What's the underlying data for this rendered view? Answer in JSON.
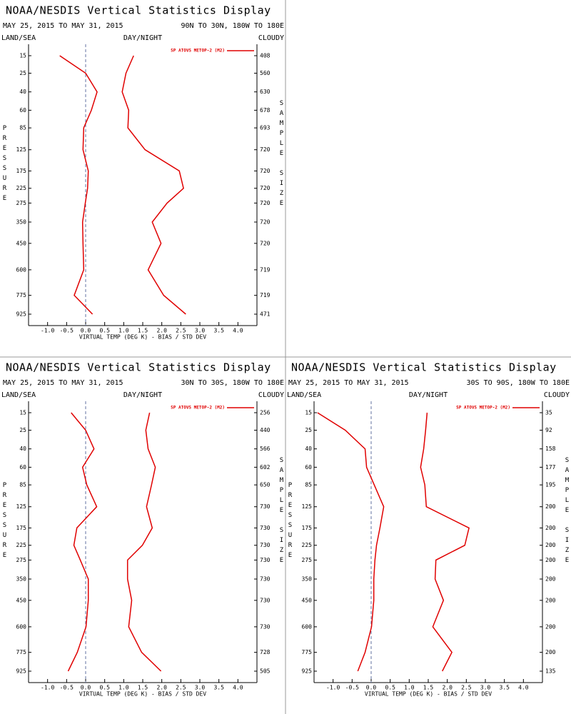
{
  "chart_data": [
    {
      "type": "line",
      "title": "NOAA/NESDIS Vertical Statistics Display",
      "date_range": "MAY 25, 2015 TO MAY 31, 2015",
      "region": "90N TO 30N, 180W TO 180E",
      "land_sea_label": "LAND/SEA",
      "day_night_label": "DAY/NIGHT",
      "cloud_label": "CLOUDY",
      "y_label": "PRESSURE",
      "y2_label": "SAMPLE SIZE",
      "x_label": "VIRTUAL TEMP (DEG K) - BIAS / STD DEV",
      "y": [
        15,
        25,
        40,
        60,
        85,
        125,
        175,
        225,
        275,
        350,
        450,
        600,
        775,
        925
      ],
      "yticks": [
        15,
        25,
        40,
        60,
        85,
        125,
        175,
        225,
        275,
        350,
        450,
        600,
        775,
        925
      ],
      "ylim": [
        15,
        925
      ],
      "sample_sizes": [
        408,
        560,
        630,
        678,
        693,
        720,
        720,
        720,
        720,
        720,
        720,
        719,
        719,
        471
      ],
      "xlim": [
        -1.5,
        4.5
      ],
      "xticks": [
        {
          "value": -1,
          "label": "-1.0"
        },
        -0.5,
        {
          "value": 0,
          "label": "0.0"
        },
        0.5,
        {
          "value": 1,
          "label": "1.0"
        },
        1.5,
        {
          "value": 2,
          "label": "2.0"
        },
        2.5,
        {
          "value": 3,
          "label": "3.0"
        },
        3.5,
        {
          "value": 4,
          "label": "4.0"
        }
      ],
      "series": [
        {
          "name": "SP ATOVS METOP-2 (M2)",
          "color": "#e00000",
          "values": [
            -0.68,
            0.0,
            0.3,
            0.15,
            -0.05,
            -0.07,
            0.07,
            0.05,
            -0.01,
            -0.08,
            -0.07,
            -0.05,
            -0.3,
            0.18
          ]
        },
        {
          "color": "#e00000",
          "values": [
            1.26,
            1.06,
            0.96,
            1.13,
            1.11,
            1.56,
            2.46,
            2.57,
            2.14,
            1.75,
            1.98,
            1.64,
            2.05,
            2.63
          ]
        }
      ]
    },
    {
      "type": "line",
      "title": "NOAA/NESDIS Vertical Statistics Display",
      "date_range": "MAY 25, 2015 TO MAY 31, 2015",
      "region": "30N TO 30S, 180W TO 180E",
      "land_sea_label": "LAND/SEA",
      "day_night_label": "DAY/NIGHT",
      "cloud_label": "CLOUDY",
      "y_label": "PRESSURE",
      "y2_label": "SAMPLE SIZE",
      "x_label": "VIRTUAL TEMP (DEG K) - BIAS / STD DEV",
      "y": [
        15,
        25,
        40,
        60,
        85,
        125,
        175,
        225,
        275,
        350,
        450,
        600,
        775,
        925
      ],
      "yticks": [
        15,
        25,
        40,
        60,
        85,
        125,
        175,
        225,
        275,
        350,
        450,
        600,
        775,
        925
      ],
      "ylim": [
        15,
        925
      ],
      "sample_sizes": [
        256,
        440,
        566,
        602,
        650,
        730,
        730,
        730,
        730,
        730,
        730,
        730,
        728,
        505
      ],
      "xlim": [
        -1.5,
        4.5
      ],
      "xticks": [
        {
          "value": -1,
          "label": "-1.0"
        },
        -0.5,
        {
          "value": 0,
          "label": "0.0"
        },
        0.5,
        {
          "value": 1,
          "label": "1.0"
        },
        1.5,
        {
          "value": 2,
          "label": "2.0"
        },
        2.5,
        {
          "value": 3,
          "label": "3.0"
        },
        3.5,
        {
          "value": 4,
          "label": "4.0"
        }
      ],
      "series": [
        {
          "name": "SP ATOVS METOP-2 (M2)",
          "color": "#e00000",
          "values": [
            -0.38,
            0.0,
            0.22,
            -0.08,
            0.03,
            0.29,
            -0.23,
            -0.31,
            -0.14,
            0.07,
            0.07,
            0.01,
            -0.22,
            -0.46
          ]
        },
        {
          "color": "#e00000",
          "values": [
            1.68,
            1.58,
            1.64,
            1.83,
            1.73,
            1.6,
            1.75,
            1.49,
            1.1,
            1.1,
            1.21,
            1.13,
            1.47,
            1.98
          ]
        }
      ]
    },
    {
      "type": "line",
      "title": "NOAA/NESDIS Vertical Statistics Display",
      "date_range": "MAY 25, 2015 TO MAY 31, 2015",
      "region": "30S TO 90S, 180W TO 180E",
      "land_sea_label": "LAND/SEA",
      "day_night_label": "DAY/NIGHT",
      "cloud_label": "CLOUDY",
      "y_label": "PRESSURE",
      "y2_label": "SAMPLE SIZE",
      "x_label": "VIRTUAL TEMP (DEG K) - BIAS / STD DEV",
      "y": [
        15,
        25,
        40,
        60,
        85,
        125,
        175,
        225,
        275,
        350,
        450,
        600,
        775,
        925
      ],
      "yticks": [
        15,
        25,
        40,
        60,
        85,
        125,
        175,
        225,
        275,
        350,
        450,
        600,
        775,
        925
      ],
      "ylim": [
        15,
        925
      ],
      "sample_sizes": [
        35,
        92,
        158,
        177,
        195,
        200,
        200,
        200,
        200,
        200,
        200,
        200,
        200,
        135
      ],
      "xlim": [
        -1.5,
        4.5
      ],
      "xticks": [
        {
          "value": -1,
          "label": "-1.0"
        },
        -0.5,
        {
          "value": 0,
          "label": "0.0"
        },
        0.5,
        {
          "value": 1,
          "label": "1.0"
        },
        1.5,
        {
          "value": 2,
          "label": "2.0"
        },
        2.5,
        {
          "value": 3,
          "label": "3.0"
        },
        3.5,
        {
          "value": 4,
          "label": "4.0"
        }
      ],
      "series": [
        {
          "name": "SP ATOVS METOP-2 (M2)",
          "color": "#e00000",
          "values": [
            -1.41,
            -0.68,
            -0.16,
            -0.12,
            0.08,
            0.33,
            0.23,
            0.14,
            0.1,
            0.07,
            0.07,
            0.01,
            -0.16,
            -0.35
          ]
        },
        {
          "color": "#e00000",
          "values": [
            1.47,
            1.43,
            1.38,
            1.3,
            1.41,
            1.45,
            2.57,
            2.46,
            1.7,
            1.68,
            1.9,
            1.62,
            2.12,
            1.87
          ]
        }
      ]
    }
  ]
}
